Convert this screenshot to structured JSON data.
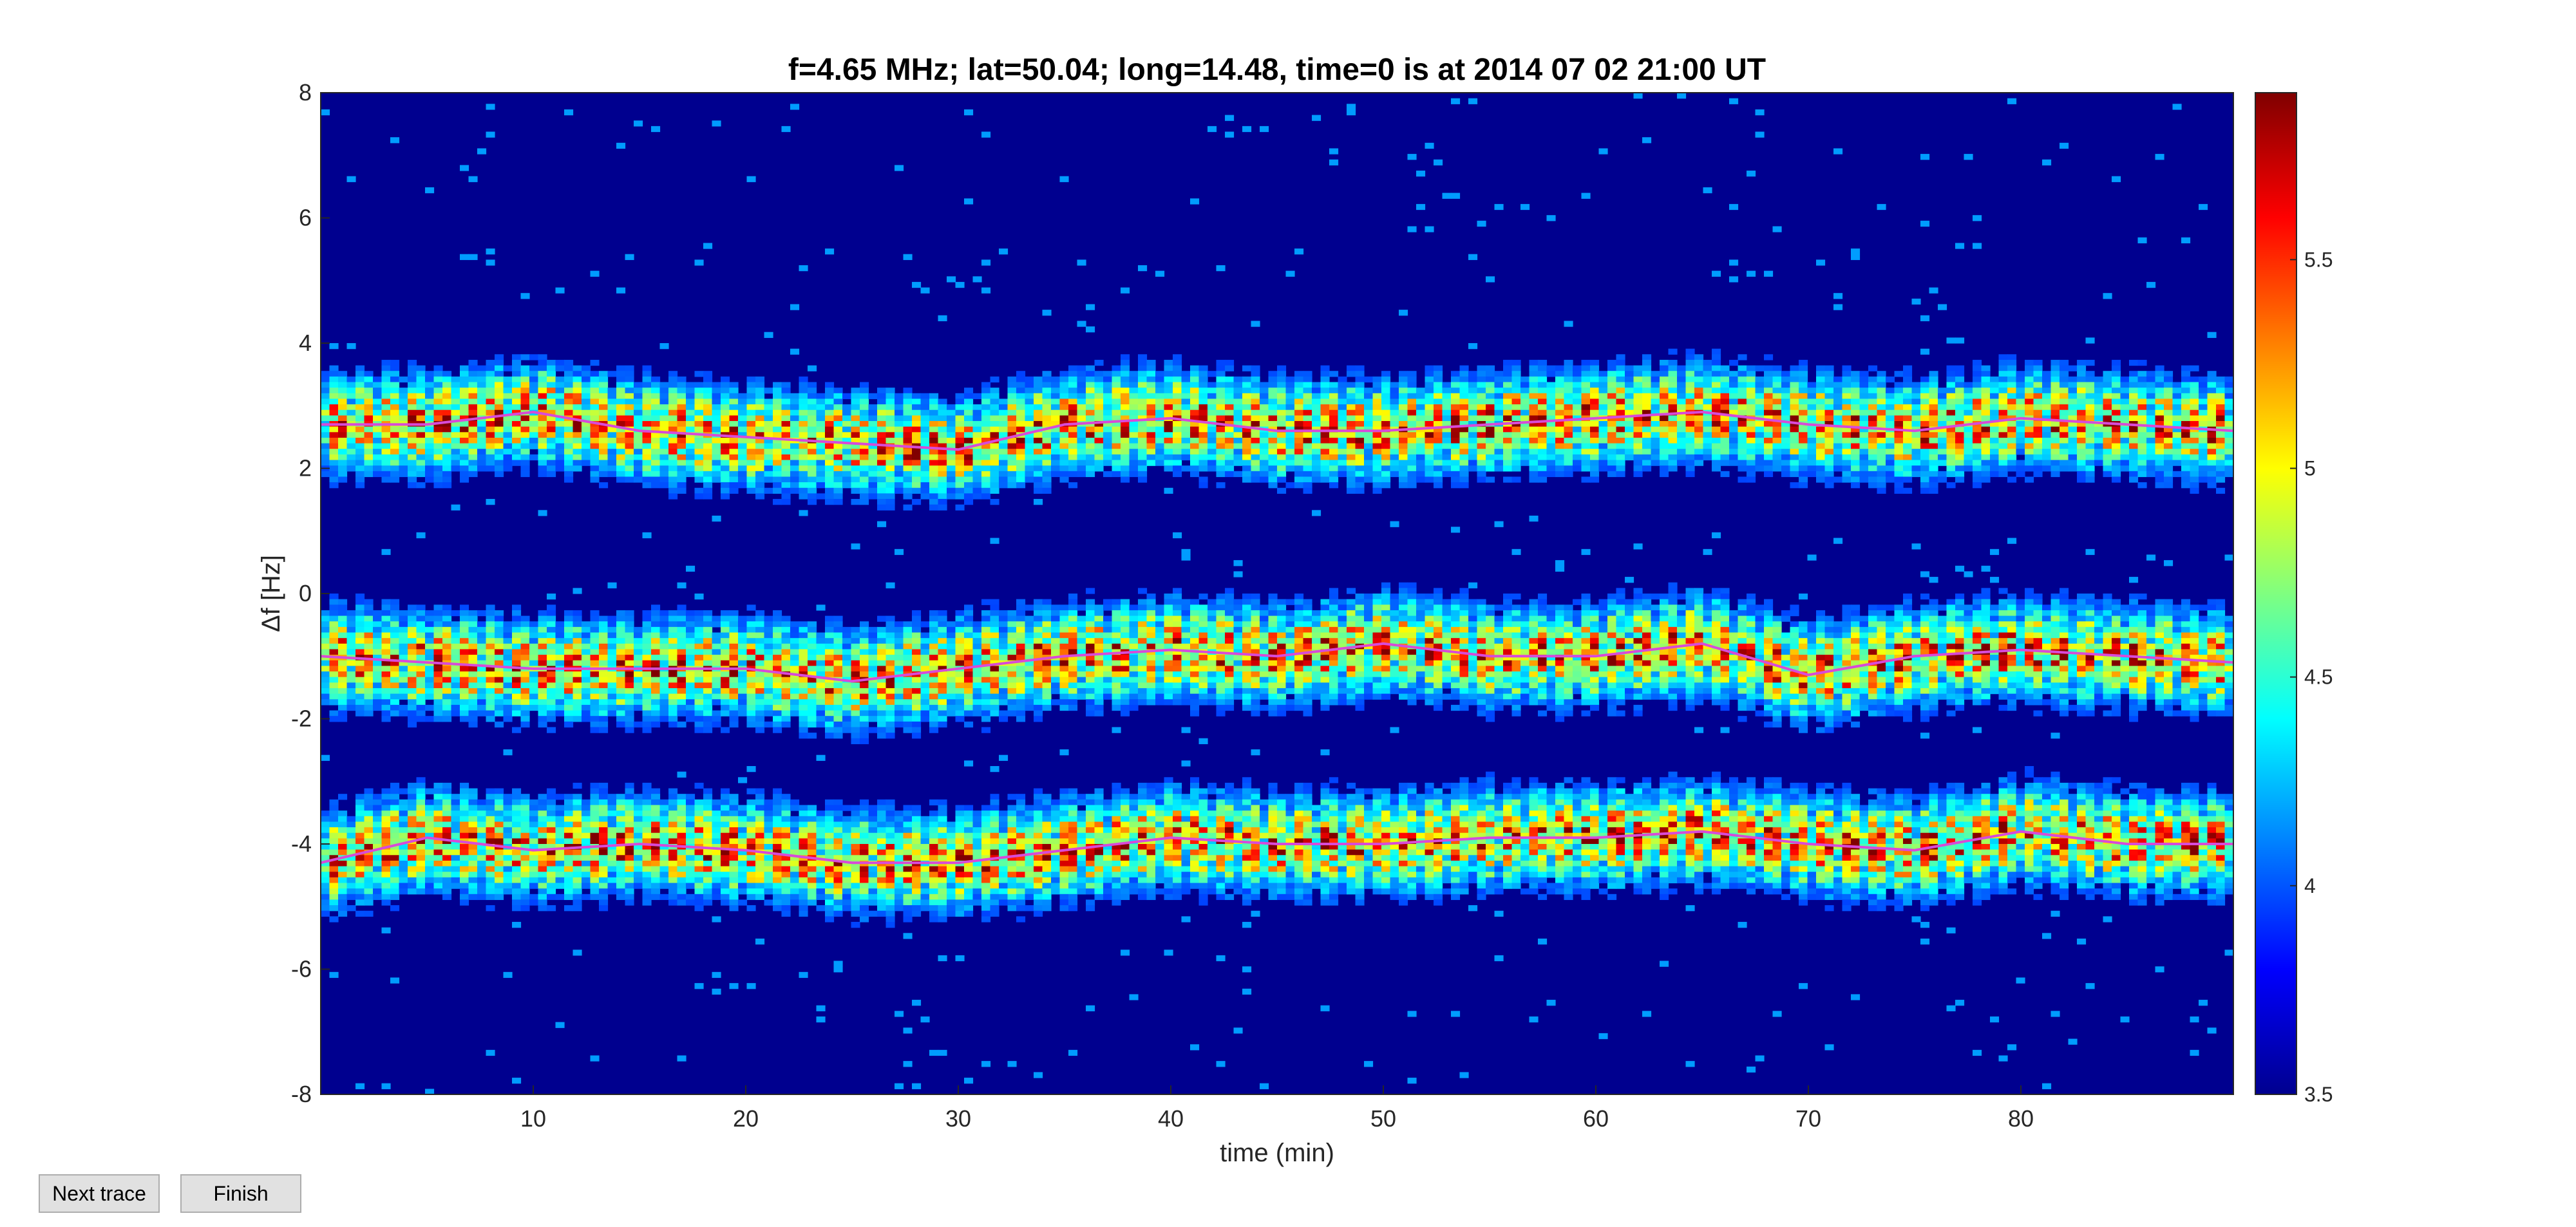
{
  "chart_data": {
    "type": "heatmap",
    "title": "f=4.65 MHz;  lat=50.04; long=14.48, time=0 is at 2014 07 02 21:00 UT",
    "xlabel": "time (min)",
    "ylabel": "Δf [Hz]",
    "xlim": [
      0,
      90
    ],
    "ylim": [
      -8,
      8
    ],
    "xticks": [
      "10",
      "20",
      "30",
      "40",
      "50",
      "60",
      "70",
      "80"
    ],
    "yticks": [
      "8",
      "6",
      "4",
      "2",
      "0",
      "-2",
      "-4",
      "-6",
      "-8"
    ],
    "grid": false,
    "colormap": "jet",
    "colorbar": {
      "range": [
        3.5,
        5.9
      ],
      "ticks": [
        "5.5",
        "5",
        "4.5",
        "4",
        "3.5"
      ]
    },
    "series": [
      {
        "x": [
          0,
          5,
          10,
          15,
          20,
          25,
          30,
          35,
          40,
          45,
          50,
          55,
          60,
          65,
          70,
          75,
          80,
          85,
          90
        ],
        "y": [
          2.7,
          2.7,
          2.9,
          2.6,
          2.5,
          2.4,
          2.3,
          2.7,
          2.8,
          2.6,
          2.6,
          2.7,
          2.8,
          2.9,
          2.7,
          2.6,
          2.8,
          2.7,
          2.6
        ]
      },
      {
        "x": [
          0,
          5,
          10,
          15,
          20,
          25,
          30,
          35,
          40,
          45,
          50,
          55,
          60,
          65,
          70,
          75,
          80,
          85,
          90
        ],
        "y": [
          -1.0,
          -1.1,
          -1.2,
          -1.2,
          -1.2,
          -1.4,
          -1.2,
          -1.0,
          -0.9,
          -1.0,
          -0.8,
          -1.0,
          -1.0,
          -0.8,
          -1.3,
          -1.0,
          -0.9,
          -1.0,
          -1.1
        ]
      },
      {
        "x": [
          0,
          5,
          10,
          15,
          20,
          25,
          30,
          35,
          40,
          45,
          50,
          55,
          60,
          65,
          70,
          75,
          80,
          85,
          90
        ],
        "y": [
          -4.3,
          -3.9,
          -4.1,
          -4.0,
          -4.1,
          -4.3,
          -4.3,
          -4.1,
          -3.9,
          -4.0,
          -4.0,
          -3.9,
          -3.9,
          -3.8,
          -4.0,
          -4.1,
          -3.8,
          -4.0,
          -4.0
        ]
      }
    ]
  },
  "buttons": {
    "next_trace": "Next trace",
    "finish": "Finish"
  },
  "colors": {
    "background": "#00008F",
    "trace_line": "#D84BD8"
  }
}
